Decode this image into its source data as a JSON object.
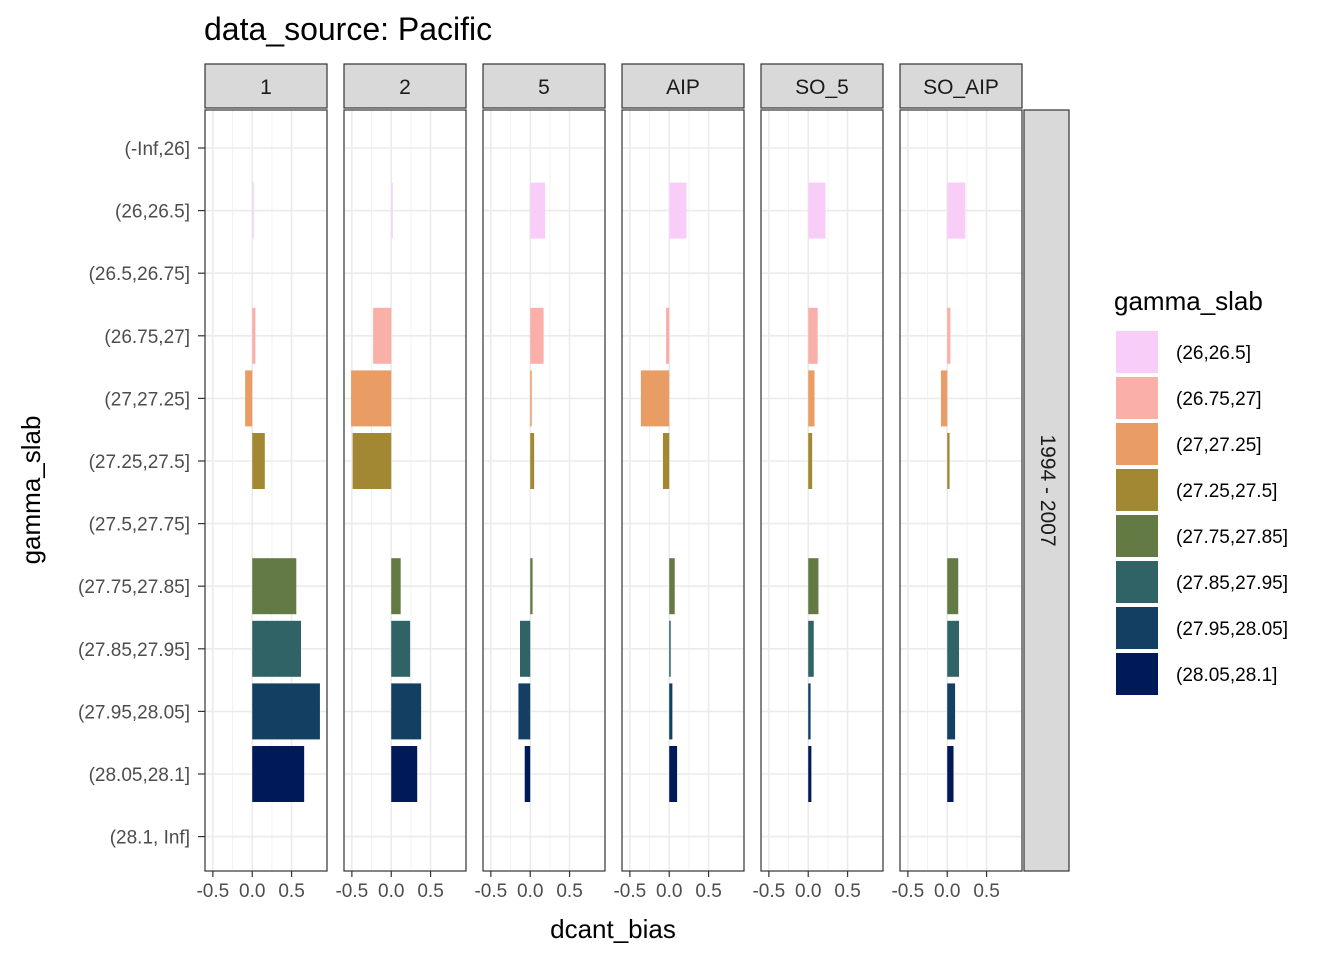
{
  "chart_data": {
    "type": "bar",
    "orientation": "horizontal",
    "title": "data_source: Pacific",
    "xlabel": "dcant_bias",
    "ylabel": "gamma_slab",
    "xlim": [
      -0.6,
      0.95
    ],
    "xticks": [
      -0.5,
      0.0,
      0.5
    ],
    "xtick_labels": [
      "-0.5",
      "0.0",
      "0.5"
    ],
    "categories": [
      "(-Inf,26]",
      "(26,26.5]",
      "(26.5,26.75]",
      "(26.75,27]",
      "(27,27.25]",
      "(27.25,27.5]",
      "(27.5,27.75]",
      "(27.75,27.85]",
      "(27.85,27.95]",
      "(27.95,28.05]",
      "(28.05,28.1]",
      "(28.1, Inf]"
    ],
    "facet_columns": [
      "1",
      "2",
      "5",
      "AIP",
      "SO_5",
      "SO_AIP"
    ],
    "facet_row": "1994 - 2007",
    "grid": true,
    "legend": {
      "title": "gamma_slab",
      "position": "right",
      "entries": [
        {
          "label": "(26,26.5]",
          "color": "#F8CDF8"
        },
        {
          "label": "(26.75,27]",
          "color": "#FAAFA9"
        },
        {
          "label": "(27,27.25]",
          "color": "#E99C63"
        },
        {
          "label": "(27.25,27.5]",
          "color": "#A38833"
        },
        {
          "label": "(27.75,27.85]",
          "color": "#637A45"
        },
        {
          "label": "(27.85,27.95]",
          "color": "#2F6365"
        },
        {
          "label": "(27.95,28.05]",
          "color": "#133F62"
        },
        {
          "label": "(28.05,28.1]",
          "color": "#001958"
        }
      ]
    },
    "series": [
      {
        "facet": "1",
        "values": {
          "(26,26.5]": 0.01,
          "(26.75,27]": 0.04,
          "(27,27.25]": -0.09,
          "(27.25,27.5]": 0.16,
          "(27.75,27.85]": 0.56,
          "(27.85,27.95]": 0.62,
          "(27.95,28.05]": 0.86,
          "(28.05,28.1]": 0.66
        }
      },
      {
        "facet": "2",
        "values": {
          "(26,26.5]": 0.01,
          "(26.75,27]": -0.23,
          "(27,27.25]": -0.51,
          "(27.25,27.5]": -0.49,
          "(27.75,27.85]": 0.12,
          "(27.85,27.95]": 0.24,
          "(27.95,28.05]": 0.38,
          "(28.05,28.1]": 0.33
        }
      },
      {
        "facet": "5",
        "values": {
          "(26,26.5]": 0.19,
          "(26.75,27]": 0.17,
          "(27,27.25]": 0.01,
          "(27.25,27.5]": 0.05,
          "(27.75,27.85]": 0.03,
          "(27.85,27.95]": -0.13,
          "(27.95,28.05]": -0.15,
          "(28.05,28.1]": -0.07
        }
      },
      {
        "facet": "AIP",
        "values": {
          "(26,26.5]": 0.22,
          "(26.75,27]": -0.04,
          "(27,27.25]": -0.36,
          "(27.25,27.5]": -0.08,
          "(27.75,27.85]": 0.07,
          "(27.85,27.95]": 0.01,
          "(27.95,28.05]": 0.04,
          "(28.05,28.1]": 0.1
        }
      },
      {
        "facet": "SO_5",
        "values": {
          "(26,26.5]": 0.22,
          "(26.75,27]": 0.12,
          "(27,27.25]": 0.08,
          "(27.25,27.5]": 0.05,
          "(27.75,27.85]": 0.13,
          "(27.85,27.95]": 0.07,
          "(27.95,28.05]": 0.03,
          "(28.05,28.1]": 0.04
        }
      },
      {
        "facet": "SO_AIP",
        "values": {
          "(26,26.5]": 0.23,
          "(26.75,27]": 0.04,
          "(27,27.25]": -0.08,
          "(27.25,27.5]": 0.03,
          "(27.75,27.85]": 0.14,
          "(27.85,27.95]": 0.15,
          "(27.95,28.05]": 0.1,
          "(28.05,28.1]": 0.08
        }
      }
    ]
  }
}
